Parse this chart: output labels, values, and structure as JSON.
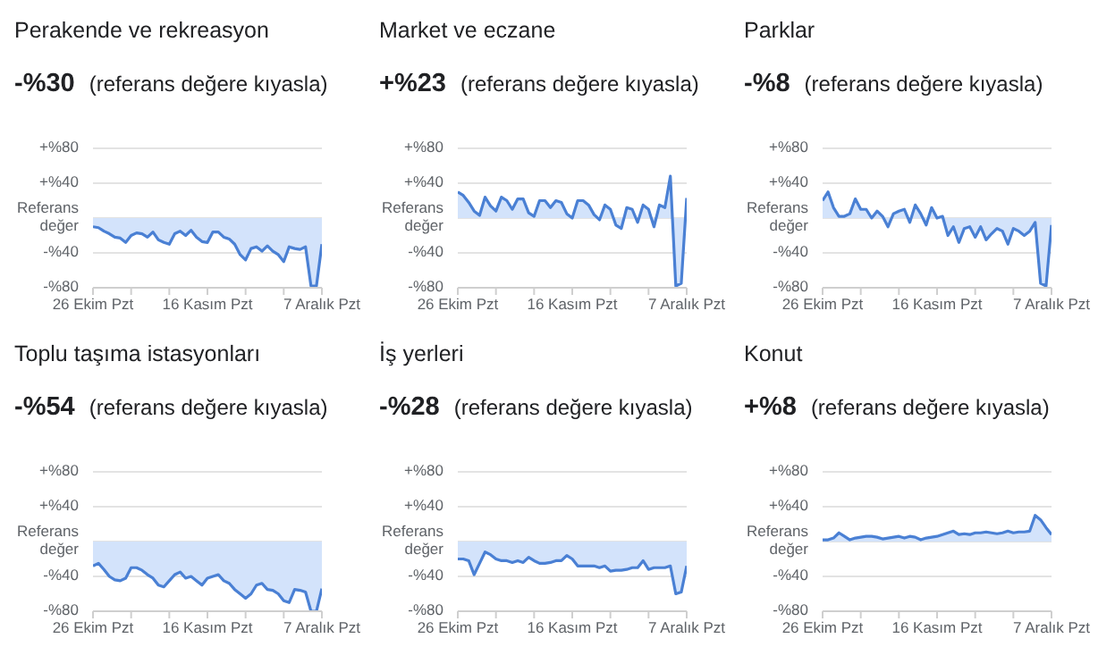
{
  "chart_data": [
    {
      "type": "area",
      "title": "Perakende ve rekreasyon",
      "subtitle": "-%30",
      "annotations": [
        "(referans değere kıyasla)"
      ],
      "grid": "y",
      "marker": "none",
      "x": [
        "--10-26",
        "--10-27",
        "--10-28",
        "--10-29",
        "--10-30",
        "--10-31",
        "--11-01",
        "--11-02",
        "--11-03",
        "--11-04",
        "--11-05",
        "--11-06",
        "--11-07",
        "--11-08",
        "--11-09",
        "--11-10",
        "--11-11",
        "--11-12",
        "--11-13",
        "--11-14",
        "--11-15",
        "--11-16",
        "--11-17",
        "--11-18",
        "--11-19",
        "--11-20",
        "--11-21",
        "--11-22",
        "--11-23",
        "--11-24",
        "--11-25",
        "--11-26",
        "--11-27",
        "--11-28",
        "--11-29",
        "--11-30",
        "--12-01",
        "--12-02",
        "--12-03",
        "--12-04",
        "--12-05",
        "--12-06",
        "--12-07"
      ],
      "xlim": [
        "--10-26",
        "--12-07"
      ],
      "xticks": [
        {
          "value": "--10-26",
          "label": "26 Ekim Pzt"
        },
        {
          "value": "--11-02",
          "label": null
        },
        {
          "value": "--11-09",
          "label": null
        },
        {
          "value": "--11-16",
          "label": "16 Kasım Pzt"
        },
        {
          "value": "--11-23",
          "label": null
        },
        {
          "value": "--11-30",
          "label": null
        },
        {
          "value": "--12-07",
          "label": "7 Aralık Pzt"
        }
      ],
      "ylim": [
        -80,
        80
      ],
      "yticks": [
        {
          "value": 80,
          "label": "+%80"
        },
        {
          "value": 40,
          "label": "+%40"
        },
        {
          "value": 0,
          "label": "Referans değer"
        },
        {
          "value": -40,
          "label": "-%40"
        },
        {
          "value": -80,
          "label": "-%80"
        }
      ],
      "series": [
        {
          "color": "#4a80d4",
          "values": [
            -10,
            -11,
            -15,
            -18,
            -22,
            -23,
            -28,
            -20,
            -17,
            -18,
            -22,
            -16,
            -25,
            -28,
            -30,
            -18,
            -15,
            -20,
            -14,
            -22,
            -27,
            -28,
            -16,
            -16,
            -22,
            -24,
            -30,
            -42,
            -48,
            -35,
            -33,
            -38,
            -32,
            -38,
            -42,
            -50,
            -33,
            -35,
            -36,
            -33,
            -78,
            -78,
            -30
          ]
        }
      ]
    },
    {
      "type": "area",
      "title": "Market ve eczane",
      "subtitle": "+%23",
      "annotations": [
        "(referans değere kıyasla)"
      ],
      "grid": "y",
      "marker": "none",
      "x": [
        "--10-26",
        "--10-27",
        "--10-28",
        "--10-29",
        "--10-30",
        "--10-31",
        "--11-01",
        "--11-02",
        "--11-03",
        "--11-04",
        "--11-05",
        "--11-06",
        "--11-07",
        "--11-08",
        "--11-09",
        "--11-10",
        "--11-11",
        "--11-12",
        "--11-13",
        "--11-14",
        "--11-15",
        "--11-16",
        "--11-17",
        "--11-18",
        "--11-19",
        "--11-20",
        "--11-21",
        "--11-22",
        "--11-23",
        "--11-24",
        "--11-25",
        "--11-26",
        "--11-27",
        "--11-28",
        "--11-29",
        "--11-30",
        "--12-01",
        "--12-02",
        "--12-03",
        "--12-04",
        "--12-05",
        "--12-06",
        "--12-07"
      ],
      "xlim": [
        "--10-26",
        "--12-07"
      ],
      "xticks": [
        {
          "value": "--10-26",
          "label": "26 Ekim Pzt"
        },
        {
          "value": "--11-02",
          "label": null
        },
        {
          "value": "--11-09",
          "label": null
        },
        {
          "value": "--11-16",
          "label": "16 Kasım Pzt"
        },
        {
          "value": "--11-23",
          "label": null
        },
        {
          "value": "--11-30",
          "label": null
        },
        {
          "value": "--12-07",
          "label": "7 Aralık Pzt"
        }
      ],
      "ylim": [
        -80,
        80
      ],
      "yticks": [
        {
          "value": 80,
          "label": "+%80"
        },
        {
          "value": 40,
          "label": "+%40"
        },
        {
          "value": 0,
          "label": "Referans değer"
        },
        {
          "value": -40,
          "label": "-%40"
        },
        {
          "value": -80,
          "label": "-%80"
        }
      ],
      "series": [
        {
          "color": "#4a80d4",
          "values": [
            30,
            26,
            18,
            8,
            3,
            24,
            14,
            8,
            24,
            20,
            10,
            22,
            22,
            6,
            2,
            20,
            20,
            12,
            20,
            18,
            5,
            0,
            20,
            20,
            15,
            4,
            -2,
            15,
            10,
            -8,
            -12,
            12,
            10,
            -5,
            15,
            10,
            -10,
            15,
            12,
            48,
            -78,
            -75,
            23
          ]
        }
      ]
    },
    {
      "type": "area",
      "title": "Parklar",
      "subtitle": "-%8",
      "annotations": [
        "(referans değere kıyasla)"
      ],
      "grid": "y",
      "marker": "none",
      "x": [
        "--10-26",
        "--10-27",
        "--10-28",
        "--10-29",
        "--10-30",
        "--10-31",
        "--11-01",
        "--11-02",
        "--11-03",
        "--11-04",
        "--11-05",
        "--11-06",
        "--11-07",
        "--11-08",
        "--11-09",
        "--11-10",
        "--11-11",
        "--11-12",
        "--11-13",
        "--11-14",
        "--11-15",
        "--11-16",
        "--11-17",
        "--11-18",
        "--11-19",
        "--11-20",
        "--11-21",
        "--11-22",
        "--11-23",
        "--11-24",
        "--11-25",
        "--11-26",
        "--11-27",
        "--11-28",
        "--11-29",
        "--11-30",
        "--12-01",
        "--12-02",
        "--12-03",
        "--12-04",
        "--12-05",
        "--12-06",
        "--12-07"
      ],
      "xlim": [
        "--10-26",
        "--12-07"
      ],
      "xticks": [
        {
          "value": "--10-26",
          "label": "26 Ekim Pzt"
        },
        {
          "value": "--11-02",
          "label": null
        },
        {
          "value": "--11-09",
          "label": null
        },
        {
          "value": "--11-16",
          "label": "16 Kasım Pzt"
        },
        {
          "value": "--11-23",
          "label": null
        },
        {
          "value": "--11-30",
          "label": null
        },
        {
          "value": "--12-07",
          "label": "7 Aralık Pzt"
        }
      ],
      "ylim": [
        -80,
        80
      ],
      "yticks": [
        {
          "value": 80,
          "label": "+%80"
        },
        {
          "value": 40,
          "label": "+%40"
        },
        {
          "value": 0,
          "label": "Referans değer"
        },
        {
          "value": -40,
          "label": "-%40"
        },
        {
          "value": -80,
          "label": "-%80"
        }
      ],
      "series": [
        {
          "color": "#4a80d4",
          "values": [
            20,
            30,
            12,
            2,
            2,
            5,
            22,
            10,
            10,
            0,
            8,
            2,
            -10,
            5,
            8,
            10,
            -5,
            15,
            5,
            -8,
            12,
            0,
            2,
            -20,
            -10,
            -28,
            -12,
            -10,
            -22,
            -10,
            -25,
            -18,
            -12,
            -15,
            -30,
            -12,
            -15,
            -20,
            -15,
            -5,
            -75,
            -78,
            -8
          ]
        }
      ]
    },
    {
      "type": "area",
      "title": "Toplu taşıma istasyonları",
      "subtitle": "-%54",
      "annotations": [
        "(referans değere kıyasla)"
      ],
      "grid": "y",
      "marker": "none",
      "x": [
        "--10-26",
        "--10-27",
        "--10-28",
        "--10-29",
        "--10-30",
        "--10-31",
        "--11-01",
        "--11-02",
        "--11-03",
        "--11-04",
        "--11-05",
        "--11-06",
        "--11-07",
        "--11-08",
        "--11-09",
        "--11-10",
        "--11-11",
        "--11-12",
        "--11-13",
        "--11-14",
        "--11-15",
        "--11-16",
        "--11-17",
        "--11-18",
        "--11-19",
        "--11-20",
        "--11-21",
        "--11-22",
        "--11-23",
        "--11-24",
        "--11-25",
        "--11-26",
        "--11-27",
        "--11-28",
        "--11-29",
        "--11-30",
        "--12-01",
        "--12-02",
        "--12-03",
        "--12-04",
        "--12-05",
        "--12-06",
        "--12-07"
      ],
      "xlim": [
        "--10-26",
        "--12-07"
      ],
      "xticks": [
        {
          "value": "--10-26",
          "label": "26 Ekim Pzt"
        },
        {
          "value": "--11-02",
          "label": null
        },
        {
          "value": "--11-09",
          "label": null
        },
        {
          "value": "--11-16",
          "label": "16 Kasım Pzt"
        },
        {
          "value": "--11-23",
          "label": null
        },
        {
          "value": "--11-30",
          "label": null
        },
        {
          "value": "--12-07",
          "label": "7 Aralık Pzt"
        }
      ],
      "ylim": [
        -80,
        80
      ],
      "yticks": [
        {
          "value": 80,
          "label": "+%80"
        },
        {
          "value": 40,
          "label": "+%40"
        },
        {
          "value": 0,
          "label": "Referans değer"
        },
        {
          "value": -40,
          "label": "-%40"
        },
        {
          "value": -80,
          "label": "-%80"
        }
      ],
      "series": [
        {
          "color": "#4a80d4",
          "values": [
            -28,
            -25,
            -32,
            -40,
            -44,
            -45,
            -42,
            -30,
            -30,
            -33,
            -38,
            -42,
            -50,
            -52,
            -45,
            -38,
            -35,
            -42,
            -40,
            -45,
            -50,
            -42,
            -40,
            -38,
            -45,
            -48,
            -55,
            -60,
            -65,
            -60,
            -50,
            -48,
            -55,
            -56,
            -60,
            -68,
            -70,
            -55,
            -56,
            -58,
            -80,
            -80,
            -54
          ]
        }
      ]
    },
    {
      "type": "area",
      "title": "İş yerleri",
      "subtitle": "-%28",
      "annotations": [
        "(referans değere kıyasla)"
      ],
      "grid": "y",
      "marker": "none",
      "x": [
        "--10-26",
        "--10-27",
        "--10-28",
        "--10-29",
        "--10-30",
        "--10-31",
        "--11-01",
        "--11-02",
        "--11-03",
        "--11-04",
        "--11-05",
        "--11-06",
        "--11-07",
        "--11-08",
        "--11-09",
        "--11-10",
        "--11-11",
        "--11-12",
        "--11-13",
        "--11-14",
        "--11-15",
        "--11-16",
        "--11-17",
        "--11-18",
        "--11-19",
        "--11-20",
        "--11-21",
        "--11-22",
        "--11-23",
        "--11-24",
        "--11-25",
        "--11-26",
        "--11-27",
        "--11-28",
        "--11-29",
        "--11-30",
        "--12-01",
        "--12-02",
        "--12-03",
        "--12-04",
        "--12-05",
        "--12-06",
        "--12-07"
      ],
      "xlim": [
        "--10-26",
        "--12-07"
      ],
      "xticks": [
        {
          "value": "--10-26",
          "label": "26 Ekim Pzt"
        },
        {
          "value": "--11-02",
          "label": null
        },
        {
          "value": "--11-09",
          "label": null
        },
        {
          "value": "--11-16",
          "label": "16 Kasım Pzt"
        },
        {
          "value": "--11-23",
          "label": null
        },
        {
          "value": "--11-30",
          "label": null
        },
        {
          "value": "--12-07",
          "label": "7 Aralık Pzt"
        }
      ],
      "ylim": [
        -80,
        80
      ],
      "yticks": [
        {
          "value": 80,
          "label": "+%80"
        },
        {
          "value": 40,
          "label": "+%40"
        },
        {
          "value": 0,
          "label": "Referans değer"
        },
        {
          "value": -40,
          "label": "-%40"
        },
        {
          "value": -80,
          "label": "-%80"
        }
      ],
      "series": [
        {
          "color": "#4a80d4",
          "values": [
            -20,
            -20,
            -22,
            -38,
            -25,
            -12,
            -15,
            -20,
            -22,
            -22,
            -24,
            -22,
            -24,
            -18,
            -22,
            -25,
            -25,
            -24,
            -22,
            -22,
            -16,
            -20,
            -28,
            -28,
            -28,
            -28,
            -30,
            -28,
            -34,
            -33,
            -33,
            -32,
            -30,
            -30,
            -22,
            -32,
            -30,
            -30,
            -30,
            -28,
            -60,
            -58,
            -28
          ]
        }
      ]
    },
    {
      "type": "area",
      "title": "Konut",
      "subtitle": "+%8",
      "annotations": [
        "(referans değere kıyasla)"
      ],
      "grid": "y",
      "marker": "none",
      "x": [
        "--10-26",
        "--10-27",
        "--10-28",
        "--10-29",
        "--10-30",
        "--10-31",
        "--11-01",
        "--11-02",
        "--11-03",
        "--11-04",
        "--11-05",
        "--11-06",
        "--11-07",
        "--11-08",
        "--11-09",
        "--11-10",
        "--11-11",
        "--11-12",
        "--11-13",
        "--11-14",
        "--11-15",
        "--11-16",
        "--11-17",
        "--11-18",
        "--11-19",
        "--11-20",
        "--11-21",
        "--11-22",
        "--11-23",
        "--11-24",
        "--11-25",
        "--11-26",
        "--11-27",
        "--11-28",
        "--11-29",
        "--11-30",
        "--12-01",
        "--12-02",
        "--12-03",
        "--12-04",
        "--12-05",
        "--12-06",
        "--12-07"
      ],
      "xlim": [
        "--10-26",
        "--12-07"
      ],
      "xticks": [
        {
          "value": "--10-26",
          "label": "26 Ekim Pzt"
        },
        {
          "value": "--11-02",
          "label": null
        },
        {
          "value": "--11-09",
          "label": null
        },
        {
          "value": "--11-16",
          "label": "16 Kasım Pzt"
        },
        {
          "value": "--11-23",
          "label": null
        },
        {
          "value": "--11-30",
          "label": null
        },
        {
          "value": "--12-07",
          "label": "7 Aralık Pzt"
        }
      ],
      "ylim": [
        -80,
        80
      ],
      "yticks": [
        {
          "value": 80,
          "label": "+%80"
        },
        {
          "value": 40,
          "label": "+%40"
        },
        {
          "value": 0,
          "label": "Referans değer"
        },
        {
          "value": -40,
          "label": "-%40"
        },
        {
          "value": -80,
          "label": "-%80"
        }
      ],
      "series": [
        {
          "color": "#4a80d4",
          "values": [
            2,
            2,
            4,
            10,
            6,
            2,
            4,
            5,
            6,
            6,
            5,
            3,
            4,
            5,
            6,
            4,
            6,
            5,
            2,
            4,
            5,
            6,
            8,
            10,
            12,
            8,
            9,
            8,
            10,
            10,
            11,
            10,
            9,
            10,
            12,
            10,
            11,
            11,
            12,
            30,
            25,
            16,
            8
          ]
        }
      ]
    }
  ]
}
